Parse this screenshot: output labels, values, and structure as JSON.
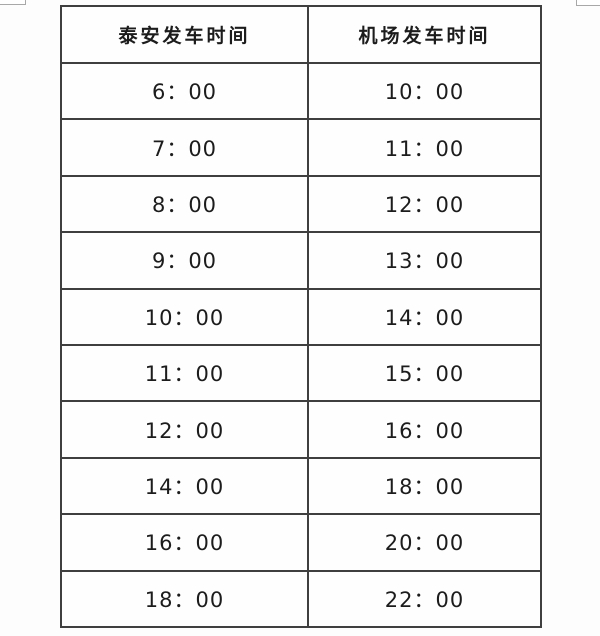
{
  "table": {
    "headers": [
      "泰安发车时间",
      "机场发车时间"
    ],
    "rows": [
      [
        "6：00",
        "10：00"
      ],
      [
        "7：00",
        "11：00"
      ],
      [
        "8：00",
        "12：00"
      ],
      [
        "9：00",
        "13：00"
      ],
      [
        "10：00",
        "14：00"
      ],
      [
        "11：00",
        "15：00"
      ],
      [
        "12：00",
        "16：00"
      ],
      [
        "14：00",
        "18：00"
      ],
      [
        "16：00",
        "20：00"
      ],
      [
        "18：00",
        "22：00"
      ]
    ]
  },
  "colors": {
    "border": "#3f3f3f",
    "text": "#1c1c1c",
    "background": "#fdfdfd",
    "artifact_border": "#a8a8a8"
  }
}
